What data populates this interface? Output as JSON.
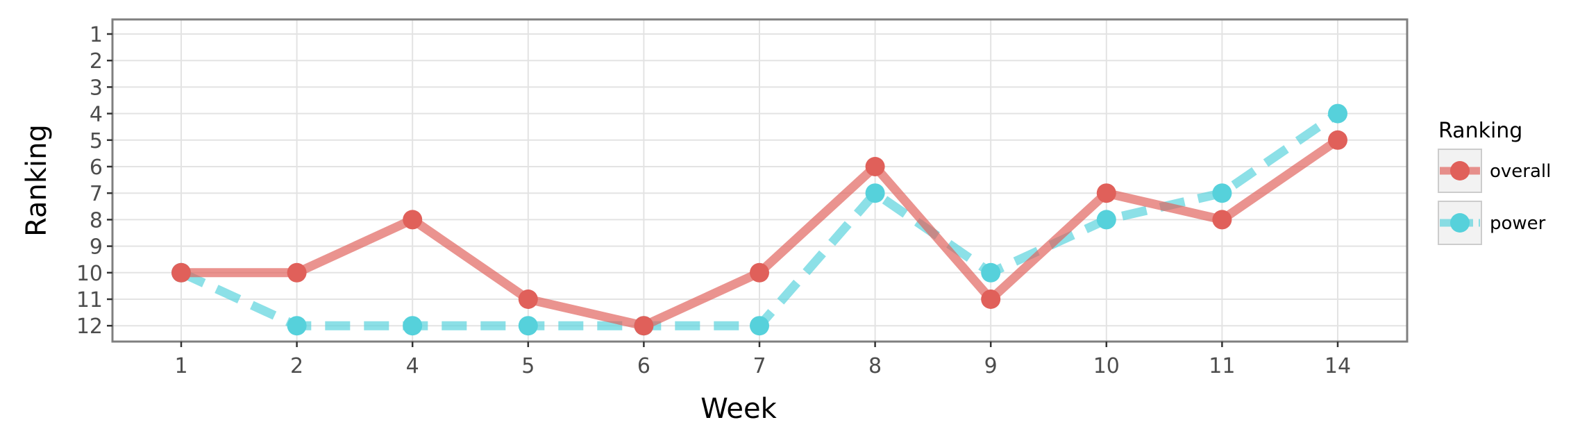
{
  "chart_data": {
    "type": "line",
    "xlabel": "Week",
    "ylabel": "Ranking",
    "categories": [
      "1",
      "2",
      "4",
      "5",
      "6",
      "7",
      "8",
      "9",
      "10",
      "11",
      "14"
    ],
    "y_ticks": [
      "1",
      "2",
      "3",
      "4",
      "5",
      "6",
      "7",
      "8",
      "9",
      "10",
      "11",
      "12"
    ],
    "ylim": [
      1,
      12
    ],
    "y_reversed": true,
    "grid": true,
    "legend": {
      "title": "Ranking",
      "position": "right"
    },
    "series": [
      {
        "name": "overall",
        "color": "#e0605a",
        "line_style": "solid",
        "values": [
          10,
          10,
          8,
          11,
          12,
          10,
          6,
          11,
          7,
          8,
          5
        ]
      },
      {
        "name": "power",
        "color": "#56d1db",
        "line_style": "dashed",
        "values": [
          10,
          12,
          12,
          12,
          12,
          12,
          7,
          10,
          8,
          7,
          4
        ]
      }
    ]
  }
}
